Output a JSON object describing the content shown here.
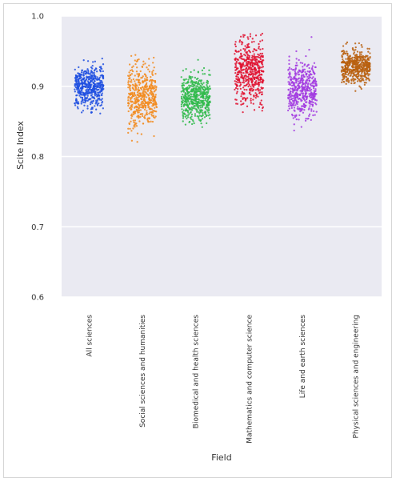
{
  "chart_data": {
    "type": "scatter",
    "subtype": "strip-plot",
    "xlabel": "Field",
    "ylabel": "Scite Index",
    "ylim": [
      0.6,
      1.0
    ],
    "yticks": [
      "0.6",
      "0.7",
      "0.8",
      "0.9",
      "1.0"
    ],
    "grid": true,
    "legend": "none",
    "categories": [
      "All sciences",
      "Social sciences and humanities",
      "Biomedical and health sciences",
      "Mathematics and computer science",
      "Life and earth sciences",
      "Physical sciences and engineering"
    ],
    "series": [
      {
        "category": "All sciences",
        "color": "#1f4fe0",
        "center": 0.9,
        "spread": 0.015,
        "min": 0.86,
        "max": 0.94,
        "n": 500
      },
      {
        "category": "Social sciences and humanities",
        "color": "#f28b1e",
        "center": 0.885,
        "spread": 0.022,
        "min": 0.79,
        "max": 0.945,
        "n": 500
      },
      {
        "category": "Biomedical and health sciences",
        "color": "#2fba4a",
        "center": 0.885,
        "spread": 0.017,
        "min": 0.84,
        "max": 0.94,
        "n": 500
      },
      {
        "category": "Mathematics and computer science",
        "color": "#e0102f",
        "center": 0.92,
        "spread": 0.022,
        "min": 0.83,
        "max": 0.975,
        "n": 500
      },
      {
        "category": "Life and earth sciences",
        "color": "#a23be0",
        "center": 0.895,
        "spread": 0.02,
        "min": 0.835,
        "max": 0.975,
        "n": 500
      },
      {
        "category": "Physical sciences and engineering",
        "color": "#b8600f",
        "center": 0.928,
        "spread": 0.012,
        "min": 0.89,
        "max": 0.965,
        "n": 500
      }
    ]
  }
}
